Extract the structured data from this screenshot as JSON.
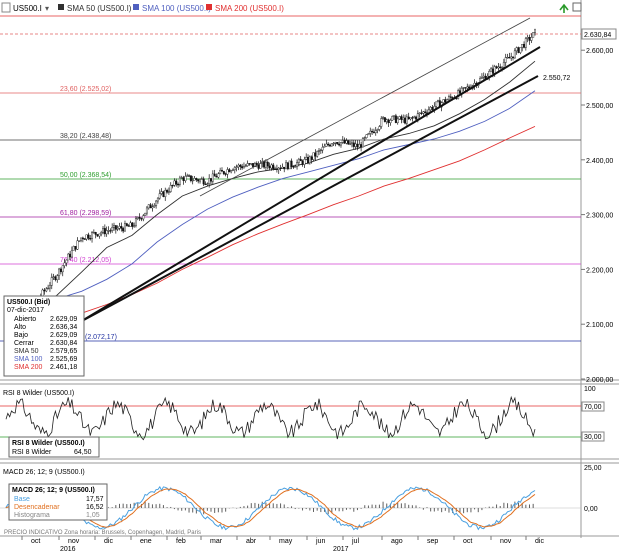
{
  "header": {
    "symbol": "US500.I",
    "sma50_label": "SMA 50 (US500.I)",
    "sma100_label": "SMA 100 (US500.I)",
    "sma200_label": "SMA 200 (US500.I)"
  },
  "price_axis": {
    "ticks": [
      "2.600,00",
      "2.500,00",
      "2.400,00",
      "2.300,00",
      "2.200,00",
      "2.100,00",
      "2.000,00"
    ],
    "last_price_label": "2.630,84",
    "trendline_label": "2.550,72"
  },
  "fib_levels": [
    {
      "label": "23,60 (2.525,02)",
      "color": "#e06060"
    },
    {
      "label": "38,20 (2.438,48)",
      "color": "#404040"
    },
    {
      "label": "50,00 (2.368,54)",
      "color": "#2e9e2e"
    },
    {
      "label": "61,80 (2.298,59)",
      "color": "#a020a0"
    },
    {
      "label": "76,40 (2.212,05)",
      "color": "#d040d0"
    },
    {
      "label": "(2.072,17)",
      "color": "#2030a0"
    }
  ],
  "info_box": {
    "title": "US500.I (Bid)",
    "date": "07-dic-2017",
    "rows": [
      {
        "label": "Abierto",
        "value": "2.629,09"
      },
      {
        "label": "Alto",
        "value": "2.636,34"
      },
      {
        "label": "Bajo",
        "value": "2.629,09"
      },
      {
        "label": "Cerrar",
        "value": "2.630,84"
      },
      {
        "label": "SMA 50",
        "value": "2.579,65"
      },
      {
        "label": "SMA 100",
        "value": "2.525,69"
      },
      {
        "label": "SMA 200",
        "value": "2.461,18"
      }
    ]
  },
  "rsi_panel": {
    "header": "RSI 8 Wilder (US500.I)",
    "box_title": "RSI 8 Wilder (US500.I)",
    "box_row_label": "RSI 8 Wilder",
    "box_row_value": "64,50",
    "ticks": [
      "100",
      "70,00",
      "30,00"
    ]
  },
  "macd_panel": {
    "header": "MACD 26; 12; 9 (US500.I)",
    "box_title": "MACD 26; 12; 9 (US500.I)",
    "rows": [
      {
        "label": "Base",
        "value": "17,57"
      },
      {
        "label": "Desencadenar",
        "value": "16,52"
      },
      {
        "label": "Histograma",
        "value": "1,05"
      }
    ],
    "ticks": [
      "25,00",
      "0,00"
    ]
  },
  "footer_note": "PRECIO INDICATIVO  Zona horaria: Brussels, Copenhagen, Madrid, Paris",
  "time_axis": {
    "months": [
      "oct",
      "nov",
      "dic",
      "ene",
      "feb",
      "mar",
      "abr",
      "may",
      "jun",
      "jul",
      "ago",
      "sep",
      "oct",
      "nov",
      "dic"
    ],
    "years": [
      "2016",
      "2017"
    ]
  },
  "colors": {
    "sma50": "#303030",
    "sma100": "#5060c0",
    "sma200": "#e03030",
    "rsi_line": "#202020",
    "macd_base": "#4aa0e0",
    "macd_signal": "#e07020",
    "macd_hist": "#606060"
  },
  "chart_data": {
    "type": "line",
    "title": "",
    "series": [
      {
        "name": "US500.I",
        "values": [
          2139,
          2128,
          2190,
          2259,
          2271,
          2279,
          2329,
          2367,
          2362,
          2387,
          2391,
          2388,
          2399,
          2435,
          2424,
          2475,
          2472,
          2498,
          2521,
          2552,
          2586,
          2631
        ]
      },
      {
        "name": "SMA 50 (US500.I)",
        "values": [
          2150,
          2140,
          2152,
          2195,
          2240,
          2262,
          2300,
          2334,
          2352,
          2366,
          2378,
          2385,
          2394,
          2410,
          2421,
          2438,
          2448,
          2462,
          2484,
          2510,
          2542,
          2580
        ]
      },
      {
        "name": "SMA 100 (US500.I)",
        "values": [
          2140,
          2142,
          2146,
          2160,
          2182,
          2210,
          2250,
          2282,
          2310,
          2332,
          2350,
          2366,
          2378,
          2390,
          2402,
          2418,
          2428,
          2438,
          2452,
          2470,
          2494,
          2526
        ]
      },
      {
        "name": "SMA 200 (US500.I)",
        "values": [
          2090,
          2098,
          2108,
          2120,
          2136,
          2154,
          2175,
          2200,
          2222,
          2245,
          2265,
          2283,
          2300,
          2318,
          2334,
          2352,
          2366,
          2382,
          2398,
          2418,
          2440,
          2461
        ]
      }
    ],
    "categories": [
      "oct",
      "nov",
      "nov",
      "dic",
      "ene",
      "feb",
      "feb",
      "mar",
      "mar",
      "abr",
      "may",
      "may",
      "jun",
      "jun",
      "jul",
      "jul",
      "ago",
      "sep",
      "sep",
      "oct",
      "nov",
      "dic"
    ],
    "ylim": [
      2000,
      2660
    ],
    "rsi": {
      "name": "RSI 8 Wilder",
      "last": 64.5,
      "levels": [
        70,
        30
      ]
    },
    "macd": {
      "base": 17.57,
      "signal": 16.52,
      "histogram": 1.05
    }
  }
}
